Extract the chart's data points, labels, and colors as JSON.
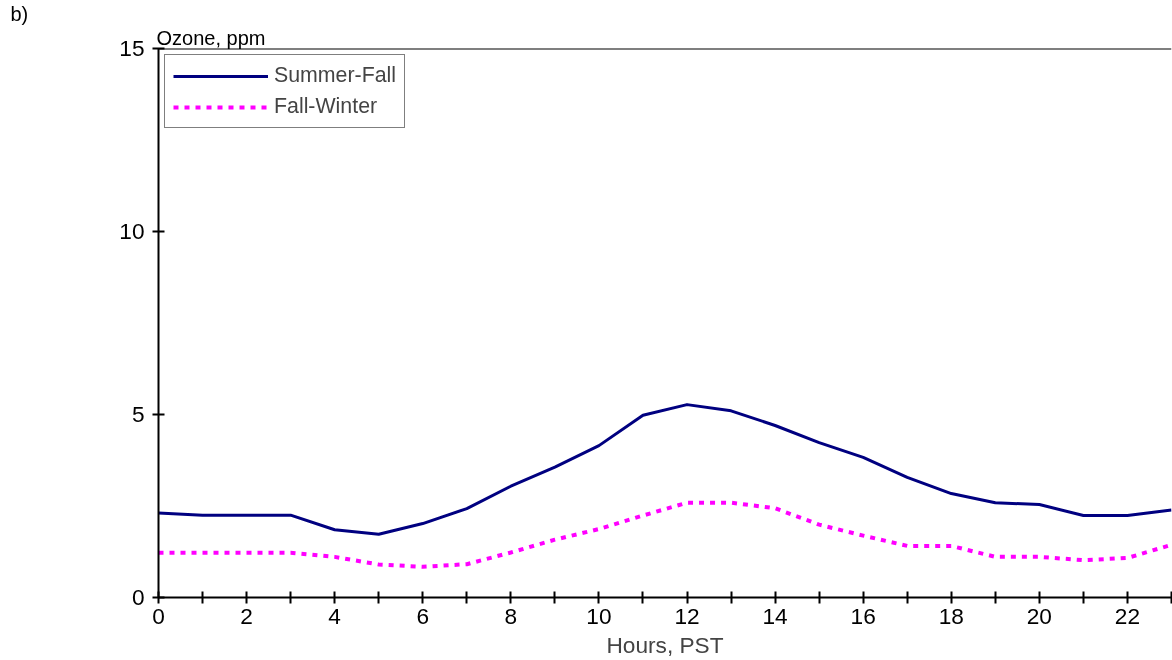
{
  "chart_data": {
    "type": "line",
    "ylabel": "Ozone, ppm",
    "xlabel": "Hours, PST",
    "annotations": [
      "b)"
    ],
    "x": [
      0,
      1,
      2,
      3,
      4,
      5,
      6,
      7,
      8,
      9,
      10,
      11,
      12,
      13,
      14,
      15,
      16,
      17,
      18,
      19,
      20,
      21,
      22,
      23
    ],
    "series": [
      {
        "name": "Summer-Fall",
        "color": "#000080",
        "line_style": "solid",
        "values": [
          2.31,
          2.25,
          2.25,
          2.25,
          1.85,
          1.73,
          2.02,
          2.43,
          3.04,
          3.56,
          4.15,
          4.98,
          5.27,
          5.1,
          4.7,
          4.23,
          3.83,
          3.28,
          2.84,
          2.59,
          2.54,
          2.24,
          2.24,
          2.39
        ]
      },
      {
        "name": "Fall-Winter",
        "color": "#ff00ff",
        "line_style": "dotted",
        "values": [
          1.22,
          1.22,
          1.22,
          1.22,
          1.11,
          0.9,
          0.84,
          0.91,
          1.23,
          1.58,
          1.87,
          2.24,
          2.59,
          2.59,
          2.44,
          1.99,
          1.69,
          1.41,
          1.41,
          1.11,
          1.11,
          1.02,
          1.08,
          1.44
        ]
      }
    ],
    "xlim": [
      0,
      23
    ],
    "xticks": [
      0,
      {
        "value": 1,
        "label": null
      },
      2,
      {
        "value": 3,
        "label": null
      },
      4,
      {
        "value": 5,
        "label": null
      },
      6,
      {
        "value": 7,
        "label": null
      },
      8,
      {
        "value": 9,
        "label": null
      },
      10,
      {
        "value": 11,
        "label": null
      },
      12,
      {
        "value": 13,
        "label": null
      },
      14,
      {
        "value": 15,
        "label": null
      },
      16,
      {
        "value": 17,
        "label": null
      },
      18,
      {
        "value": 19,
        "label": null
      },
      20,
      {
        "value": 21,
        "label": null
      },
      22,
      {
        "value": 23,
        "label": null
      }
    ],
    "ylim": [
      0,
      15
    ],
    "yticks": [
      0,
      5,
      10,
      15
    ],
    "grid": false,
    "legend": "top left",
    "marker": "none"
  }
}
